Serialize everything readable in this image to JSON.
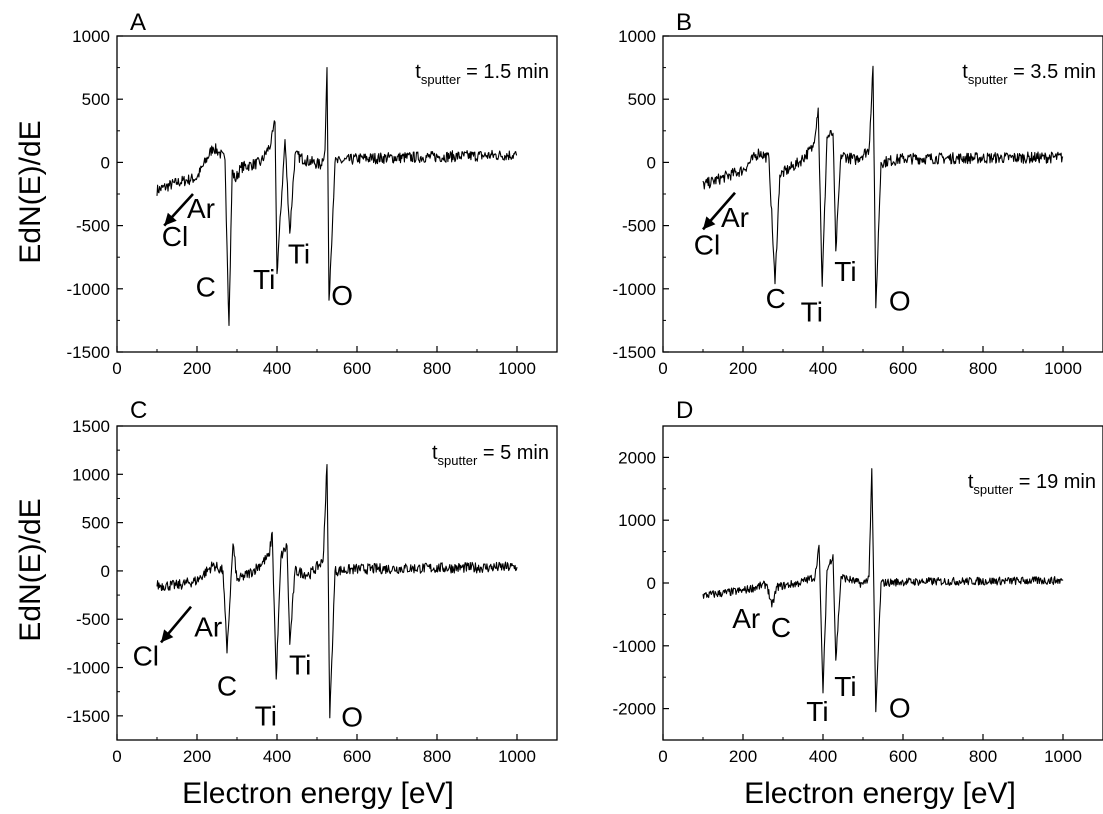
{
  "figure": {
    "ylabel": "EdN(E)/dE",
    "xlabel": "Electron energy [eV]"
  },
  "chart_data": [
    {
      "type": "line",
      "panel": "A",
      "t_var": "t",
      "t_sub": "sputter",
      "t_value": "= 1.5 min",
      "xlim": [
        0,
        1100
      ],
      "ylim": [
        -1500,
        1000
      ],
      "xticks": [
        0,
        200,
        400,
        600,
        800,
        1000
      ],
      "yticks": [
        -1500,
        -1000,
        -500,
        0,
        500,
        1000
      ],
      "noise": 45,
      "series": [
        {
          "x": [
            100,
            150,
            200,
            240,
            255,
            270,
            280,
            288,
            295,
            310,
            360,
            385,
            395,
            400,
            420,
            432,
            445,
            470,
            510,
            520,
            525,
            530,
            545,
            600,
            1000
          ],
          "y": [
            -220,
            -160,
            -120,
            120,
            80,
            20,
            -1290,
            -60,
            -140,
            -40,
            0,
            150,
            320,
            -880,
            180,
            -560,
            60,
            20,
            -20,
            100,
            750,
            -1090,
            0,
            30,
            60
          ]
        }
      ],
      "peaks": [
        {
          "label": "Cl",
          "x": 145,
          "y": -660
        },
        {
          "label": "Ar",
          "x": 210,
          "y": -440
        },
        {
          "label": "C",
          "x": 222,
          "y": -1060
        },
        {
          "label": "Ti",
          "x": 368,
          "y": -1000
        },
        {
          "label": "Ti",
          "x": 455,
          "y": -800
        },
        {
          "label": "O",
          "x": 563,
          "y": -1130
        }
      ],
      "arrow": {
        "x1": 190,
        "y1": -250,
        "x2": 118,
        "y2": -500
      }
    },
    {
      "type": "line",
      "panel": "B",
      "t_var": "t",
      "t_sub": "sputter",
      "t_value": "= 3.5 min",
      "xlim": [
        0,
        1100
      ],
      "ylim": [
        -1500,
        1000
      ],
      "xticks": [
        0,
        200,
        400,
        600,
        800,
        1000
      ],
      "yticks": [
        -1500,
        -1000,
        -500,
        0,
        500,
        1000
      ],
      "noise": 45,
      "series": [
        {
          "x": [
            100,
            150,
            200,
            240,
            265,
            280,
            292,
            340,
            375,
            388,
            398,
            410,
            425,
            432,
            445,
            480,
            515,
            525,
            532,
            545,
            600,
            1000
          ],
          "y": [
            -180,
            -120,
            -60,
            80,
            30,
            -960,
            -100,
            0,
            120,
            430,
            -980,
            200,
            230,
            -700,
            60,
            20,
            100,
            760,
            -1150,
            0,
            30,
            40
          ]
        }
      ],
      "peaks": [
        {
          "label": "Cl",
          "x": 110,
          "y": -730
        },
        {
          "label": "Ar",
          "x": 180,
          "y": -510
        },
        {
          "label": "C",
          "x": 282,
          "y": -1150
        },
        {
          "label": "Ti",
          "x": 372,
          "y": -1260
        },
        {
          "label": "Ti",
          "x": 456,
          "y": -940
        },
        {
          "label": "O",
          "x": 592,
          "y": -1170
        }
      ],
      "arrow": {
        "x1": 180,
        "y1": -240,
        "x2": 100,
        "y2": -530
      }
    },
    {
      "type": "line",
      "panel": "C",
      "t_var": "t",
      "t_sub": "sputter",
      "t_value": "= 5 min",
      "xlim": [
        0,
        1100
      ],
      "ylim": [
        -1750,
        1500
      ],
      "xticks": [
        0,
        200,
        400,
        600,
        800,
        1000
      ],
      "yticks": [
        -1500,
        -1000,
        -500,
        0,
        500,
        1000,
        1500
      ],
      "noise": 55,
      "series": [
        {
          "x": [
            100,
            150,
            200,
            240,
            265,
            275,
            290,
            300,
            340,
            380,
            388,
            398,
            410,
            425,
            432,
            445,
            480,
            515,
            525,
            532,
            545,
            600,
            1000
          ],
          "y": [
            -150,
            -150,
            -100,
            60,
            0,
            -850,
            280,
            -100,
            0,
            150,
            400,
            -1120,
            150,
            260,
            -760,
            0,
            -40,
            100,
            1100,
            -1520,
            0,
            20,
            40
          ]
        }
      ],
      "peaks": [
        {
          "label": "Cl",
          "x": 72,
          "y": -980
        },
        {
          "label": "Ar",
          "x": 228,
          "y": -680
        },
        {
          "label": "C",
          "x": 275,
          "y": -1290
        },
        {
          "label": "Ti",
          "x": 372,
          "y": -1600
        },
        {
          "label": "Ti",
          "x": 458,
          "y": -1070
        },
        {
          "label": "O",
          "x": 588,
          "y": -1610
        }
      ],
      "arrow": {
        "x1": 185,
        "y1": -370,
        "x2": 110,
        "y2": -740
      }
    },
    {
      "type": "line",
      "panel": "D",
      "t_var": "t",
      "t_sub": "sputter",
      "t_value": "= 19 min",
      "xlim": [
        0,
        1100
      ],
      "ylim": [
        -2500,
        2500
      ],
      "xticks": [
        0,
        200,
        400,
        600,
        800,
        1000
      ],
      "yticks": [
        -2000,
        -1000,
        0,
        1000,
        2000
      ],
      "noise": 65,
      "series": [
        {
          "x": [
            100,
            200,
            260,
            272,
            285,
            340,
            380,
            390,
            400,
            410,
            425,
            432,
            445,
            500,
            515,
            522,
            532,
            545,
            600,
            1000
          ],
          "y": [
            -200,
            -120,
            -20,
            -380,
            -60,
            0,
            100,
            600,
            -1750,
            200,
            450,
            -1230,
            100,
            -20,
            100,
            1820,
            -2050,
            0,
            20,
            40
          ]
        }
      ],
      "peaks": [
        {
          "label": "Ar",
          "x": 208,
          "y": -720
        },
        {
          "label": "C",
          "x": 295,
          "y": -860
        },
        {
          "label": "Ti",
          "x": 386,
          "y": -2200
        },
        {
          "label": "Ti",
          "x": 456,
          "y": -1800
        },
        {
          "label": "O",
          "x": 592,
          "y": -2140
        }
      ],
      "arrow": null
    }
  ]
}
